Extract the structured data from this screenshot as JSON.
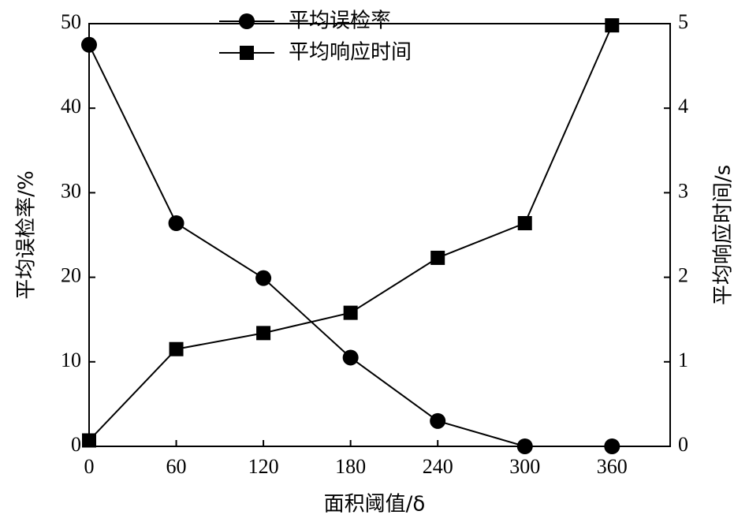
{
  "chart_data": {
    "type": "line",
    "x_label": "面积阈值/δ",
    "y_label": "平均误检率/%",
    "y2_label": "平均响应时间/s",
    "x": [
      0,
      60,
      120,
      180,
      240,
      300,
      360
    ],
    "xlim": [
      0,
      400
    ],
    "xticks": [
      0,
      60,
      120,
      180,
      240,
      300,
      360
    ],
    "ylim": [
      0,
      50
    ],
    "yticks": [
      0,
      10,
      20,
      30,
      40,
      50
    ],
    "y2lim": [
      0,
      5
    ],
    "y2ticks": [
      0,
      1,
      2,
      3,
      4,
      5
    ],
    "series": [
      {
        "name": "平均误检率",
        "color": "#000000",
        "marker": "circle",
        "values": [
          47.5,
          26.4,
          19.9,
          10.5,
          3.0,
          0,
          0
        ]
      },
      {
        "name": "平均响应时间",
        "color": "#000000",
        "marker": "square",
        "axis": "y2",
        "values": [
          0.07,
          1.15,
          1.34,
          1.58,
          2.23,
          2.64,
          4.98
        ]
      }
    ]
  }
}
